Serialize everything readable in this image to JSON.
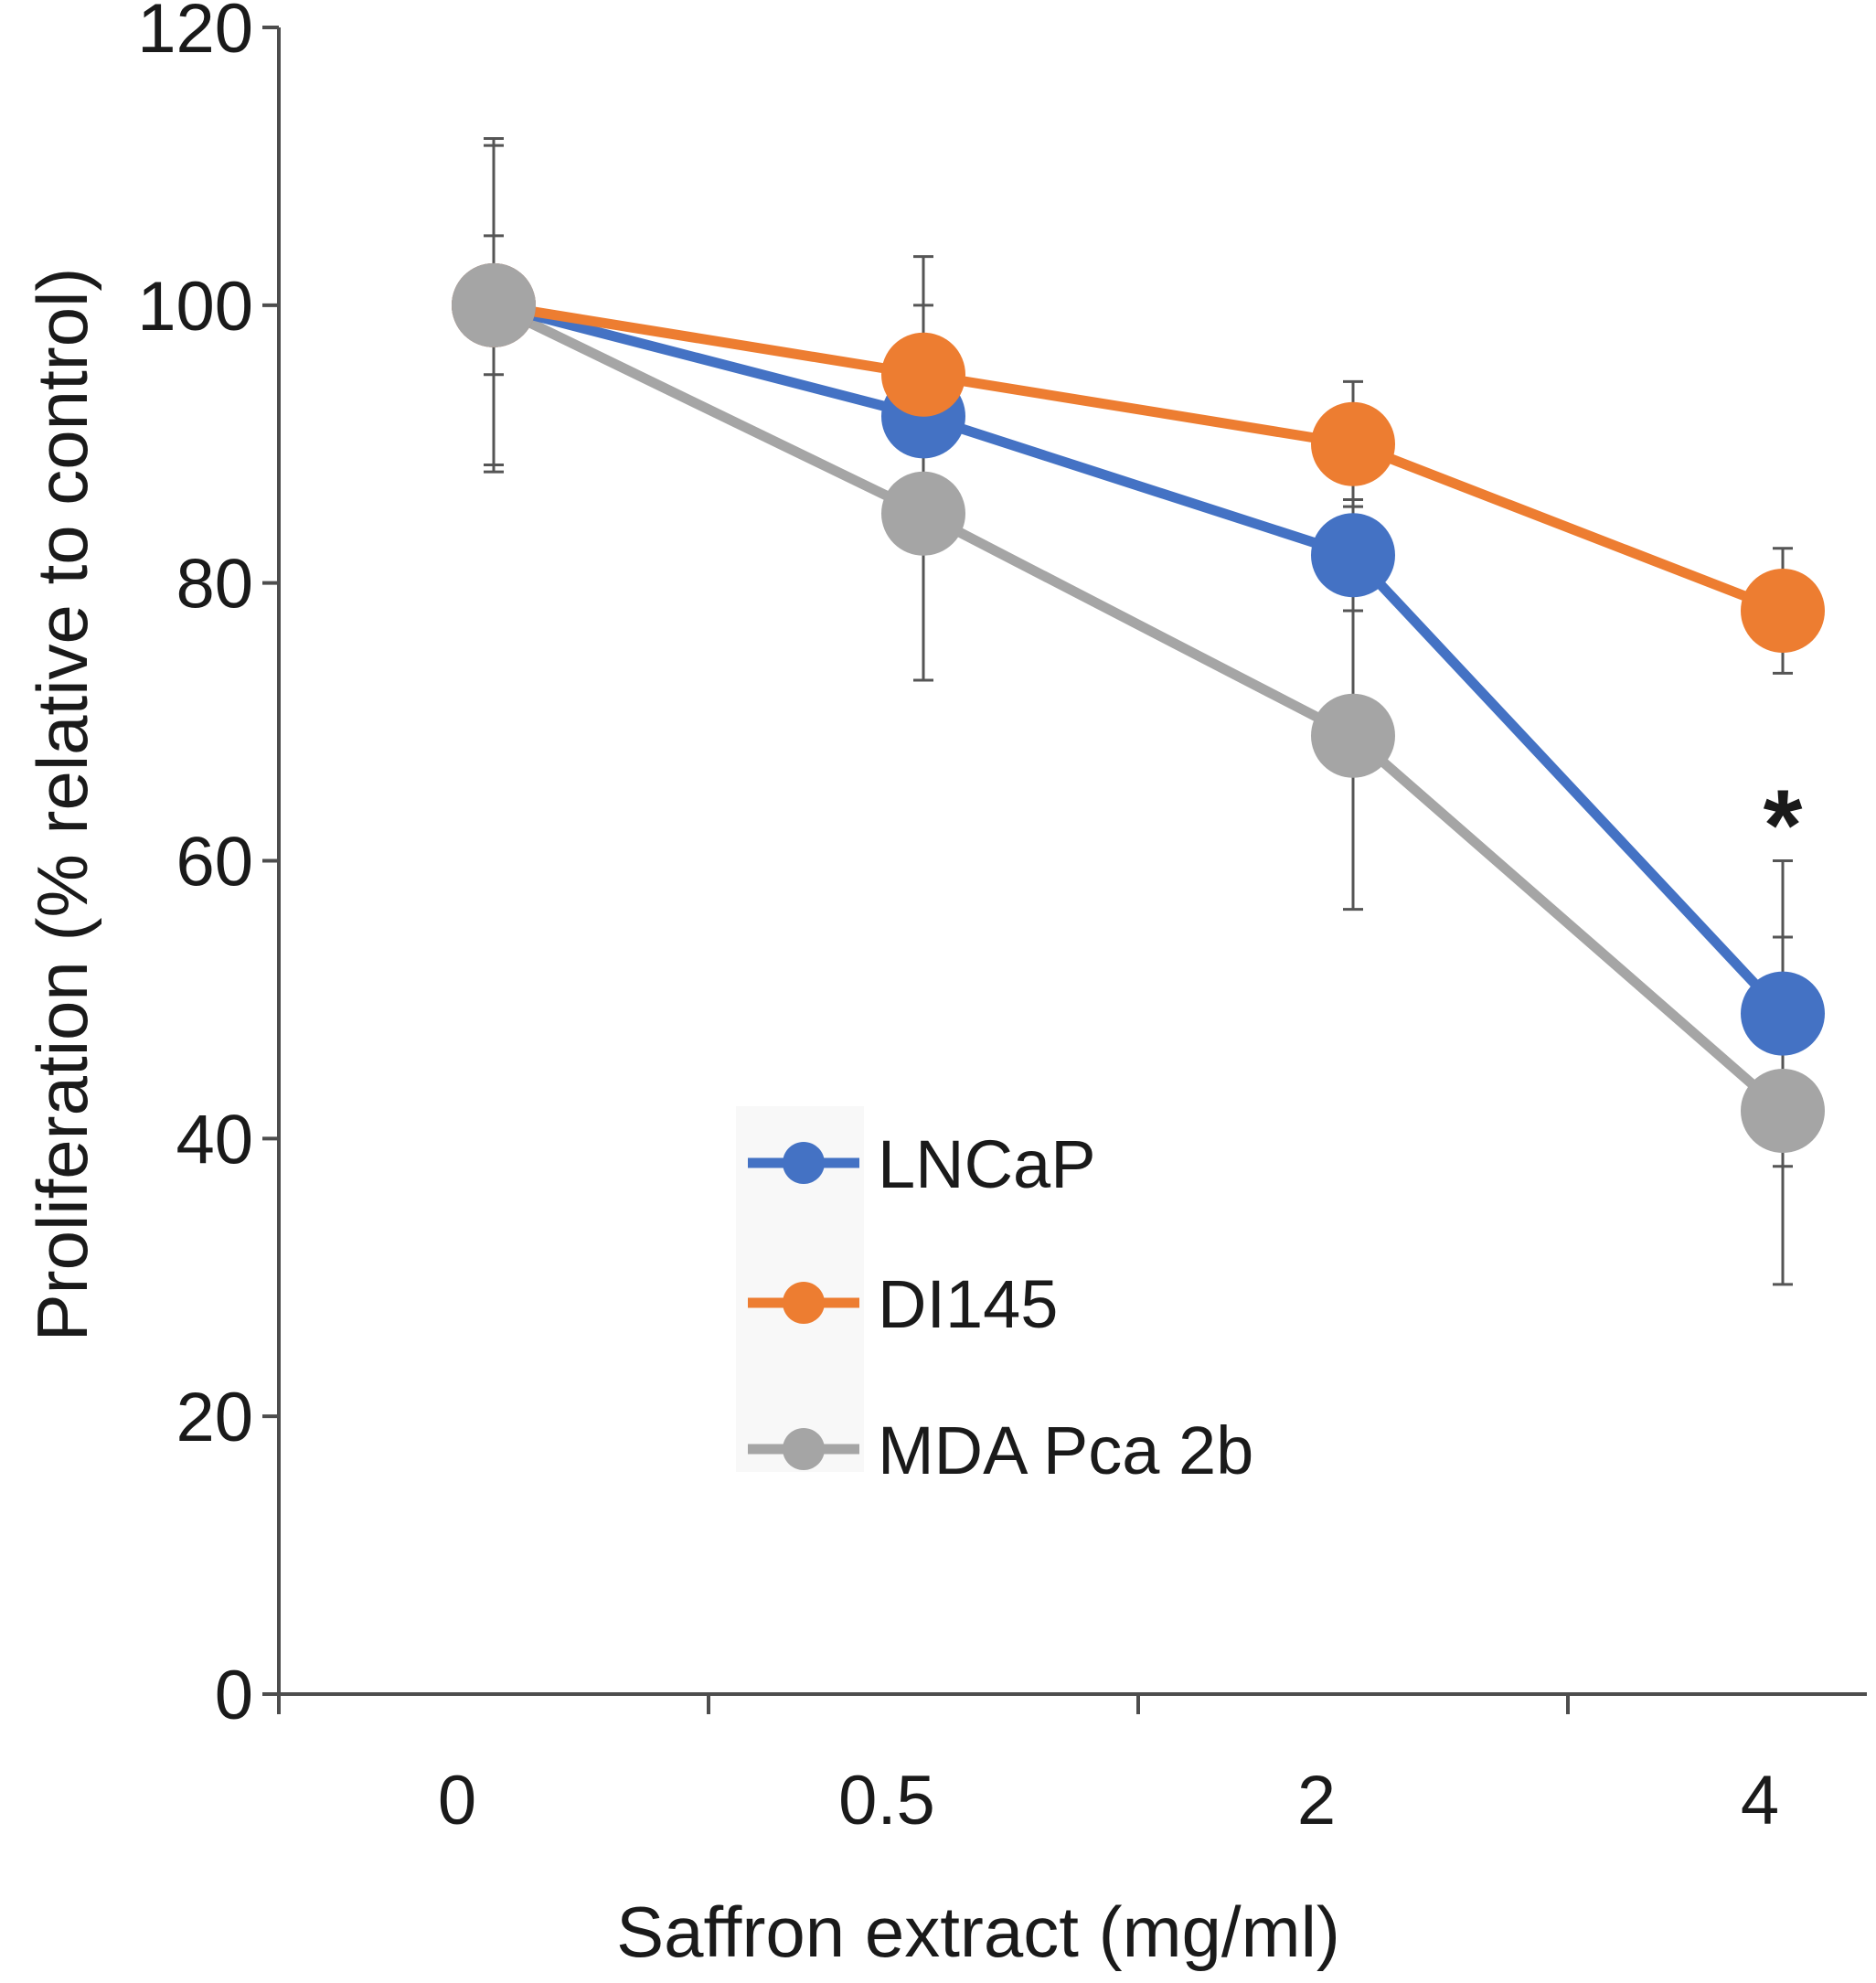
{
  "chart_data": {
    "type": "line",
    "title": "",
    "xlabel": "Saffron extract (mg/ml)",
    "ylabel": "Proliferation (% relative to control)",
    "categories": [
      "0",
      "0.5",
      "2",
      "4"
    ],
    "ylim": [
      0,
      120
    ],
    "yticks": [
      0,
      20,
      40,
      60,
      80,
      100,
      120
    ],
    "legend_position": "bottom-center",
    "series": [
      {
        "name": "LNCaP",
        "color": "#4472c4",
        "values": [
          100,
          92,
          82,
          49
        ],
        "errors": [
          12,
          8,
          4,
          11
        ]
      },
      {
        "name": "DI145",
        "color": "#ed7d31",
        "values": [
          100,
          95,
          90,
          78
        ],
        "errors": [
          5,
          8.5,
          4.5,
          4.5
        ]
      },
      {
        "name": "MDA Pca 2b",
        "color": "#a5a5a5",
        "values": [
          100,
          85,
          69,
          42
        ],
        "errors": [
          11.5,
          12,
          12.5,
          12.5
        ]
      }
    ],
    "annotations": [
      {
        "text": "*",
        "category": "4",
        "y": 64
      }
    ]
  }
}
